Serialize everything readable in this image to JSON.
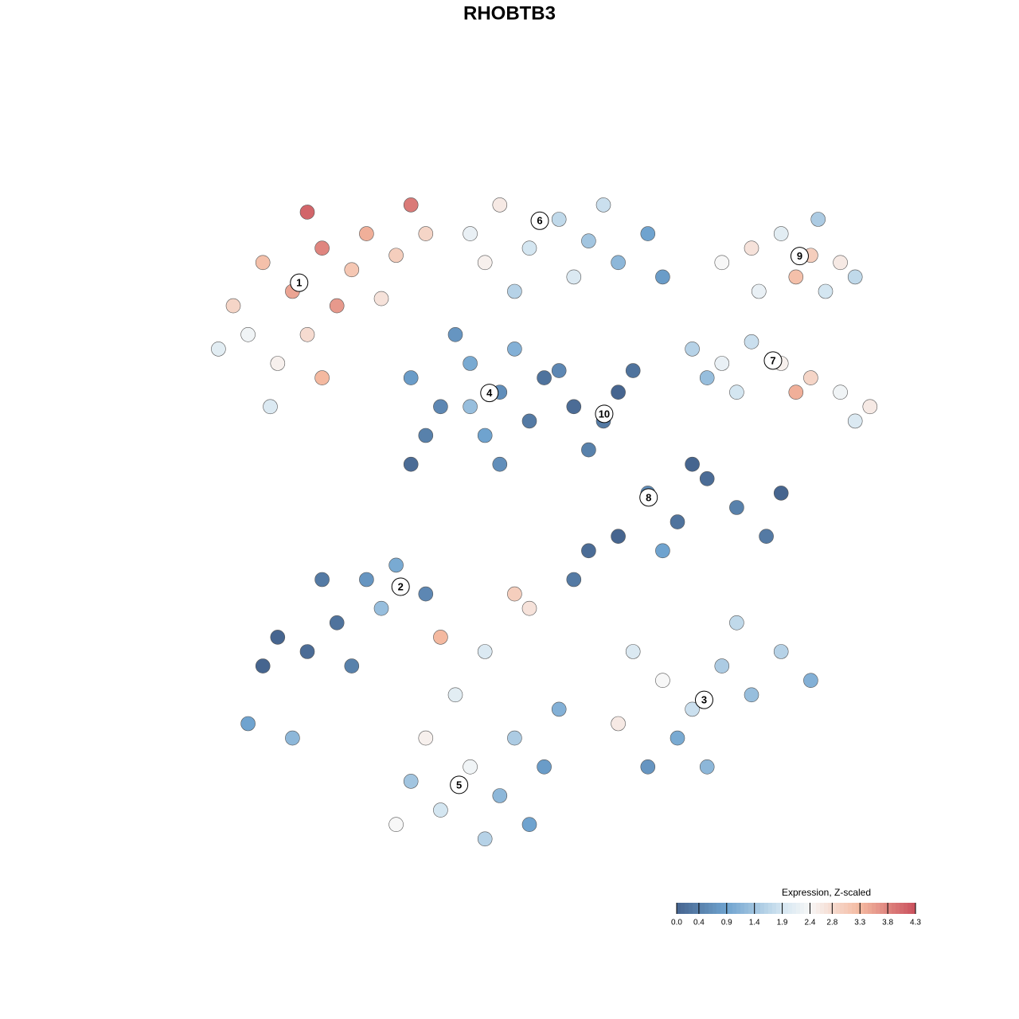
{
  "chart_data": {
    "type": "scatter",
    "title": "RHOBTB3",
    "colorbar_title": "Expression, Z-scaled",
    "xlim": [
      0,
      100
    ],
    "ylim": [
      0,
      100
    ],
    "colorscale": [
      [
        0,
        "#46658f"
      ],
      [
        0.9,
        "#6fa3cf"
      ],
      [
        1.9,
        "#d4e6f1"
      ],
      [
        2.4,
        "#f7f7f7"
      ],
      [
        3.3,
        "#f4b9a0"
      ],
      [
        4.3,
        "#c9505d"
      ]
    ],
    "colorlim": [
      0,
      4.3
    ],
    "colorticks": [
      {
        "value": 0,
        "label": "0.0"
      },
      0.4,
      0.9,
      1.4,
      1.9,
      2.4,
      2.8,
      3.3,
      3.8,
      4.3
    ],
    "x": [
      10,
      14,
      18,
      22,
      26,
      24,
      20,
      16,
      12,
      28,
      32,
      30,
      8,
      15,
      22,
      36,
      34,
      20,
      42,
      46,
      50,
      54,
      58,
      62,
      66,
      48,
      56,
      44,
      60,
      68,
      76,
      80,
      84,
      88,
      92,
      90,
      86,
      81,
      94,
      89,
      72,
      76,
      80,
      84,
      88,
      92,
      96,
      86,
      78,
      74,
      94,
      34,
      38,
      42,
      46,
      50,
      44,
      36,
      48,
      40,
      52,
      34,
      46,
      42,
      56,
      60,
      62,
      58,
      64,
      54,
      62,
      66,
      70,
      74,
      78,
      82,
      84,
      72,
      68,
      58,
      16,
      20,
      24,
      28,
      32,
      36,
      22,
      14,
      30,
      26,
      12,
      18,
      64,
      68,
      72,
      76,
      80,
      84,
      88,
      70,
      62,
      78,
      66,
      74,
      34,
      38,
      42,
      46,
      50,
      44,
      36,
      40,
      48,
      52,
      32,
      54,
      44,
      50,
      56,
      38,
      48
    ],
    "y": [
      78,
      84,
      80,
      86,
      83,
      78,
      74,
      70,
      74,
      88,
      85,
      79,
      72,
      64,
      68,
      88,
      92,
      91,
      88,
      92,
      86,
      90,
      87,
      84,
      88,
      80,
      82,
      84,
      92,
      82,
      84,
      86,
      88,
      85,
      84,
      80,
      82,
      80,
      82,
      90,
      72,
      70,
      73,
      70,
      68,
      66,
      64,
      66,
      66,
      68,
      62,
      68,
      64,
      70,
      66,
      62,
      60,
      60,
      72,
      74,
      68,
      56,
      56,
      64,
      64,
      62,
      66,
      58,
      69,
      69,
      46,
      52,
      48,
      54,
      50,
      46,
      52,
      56,
      44,
      44,
      32,
      30,
      34,
      40,
      42,
      38,
      40,
      28,
      36,
      28,
      20,
      18,
      30,
      26,
      22,
      28,
      24,
      30,
      26,
      18,
      20,
      34,
      14,
      14,
      12,
      8,
      14,
      10,
      6,
      4,
      18,
      24,
      18,
      14,
      6,
      22,
      30,
      36,
      40,
      32,
      38
    ],
    "values": [
      2.9,
      3.2,
      3.5,
      3.8,
      3.1,
      3.6,
      2.8,
      2.5,
      2.3,
      3.4,
      3.0,
      2.7,
      2.1,
      2.0,
      3.3,
      2.9,
      3.9,
      4.1,
      2.2,
      2.6,
      1.9,
      1.7,
      1.4,
      1.2,
      0.9,
      1.6,
      2.0,
      2.5,
      1.8,
      0.8,
      2.4,
      2.7,
      2.1,
      3.0,
      2.6,
      1.9,
      3.2,
      2.2,
      1.7,
      1.5,
      1.6,
      2.2,
      1.8,
      2.5,
      2.9,
      2.3,
      2.6,
      3.4,
      1.9,
      1.3,
      2.0,
      0.8,
      0.5,
      1.0,
      0.6,
      0.3,
      0.9,
      0.4,
      1.1,
      0.7,
      0.2,
      0.1,
      0.6,
      1.3,
      0.1,
      0.3,
      0.0,
      0.4,
      0.2,
      0.5,
      0.0,
      0.6,
      0.2,
      0.1,
      0.4,
      0.3,
      0.0,
      0.0,
      0.9,
      0.1,
      0.0,
      0.1,
      0.2,
      0.7,
      1.0,
      0.5,
      0.3,
      0.0,
      1.3,
      0.4,
      0.9,
      1.2,
      2.0,
      2.4,
      1.8,
      1.5,
      1.3,
      1.6,
      1.1,
      1.0,
      2.6,
      1.7,
      0.7,
      1.2,
      1.4,
      1.9,
      2.3,
      1.2,
      0.9,
      1.6,
      2.5,
      2.1,
      1.5,
      0.8,
      2.4,
      1.1,
      2.0,
      2.7,
      0.3,
      3.3,
      3.0
    ],
    "clusters": [
      {
        "label": "1",
        "x": 18.9,
        "y": 81.2
      },
      {
        "label": "2",
        "x": 32.6,
        "y": 39.0
      },
      {
        "label": "3",
        "x": 73.6,
        "y": 23.3
      },
      {
        "label": "4",
        "x": 44.6,
        "y": 65.9
      },
      {
        "label": "5",
        "x": 40.5,
        "y": 11.5
      },
      {
        "label": "6",
        "x": 51.4,
        "y": 89.8
      },
      {
        "label": "7",
        "x": 82.9,
        "y": 70.4
      },
      {
        "label": "8",
        "x": 66.1,
        "y": 51.4
      },
      {
        "label": "9",
        "x": 86.5,
        "y": 84.9
      },
      {
        "label": "10",
        "x": 60.1,
        "y": 63.0
      }
    ]
  }
}
